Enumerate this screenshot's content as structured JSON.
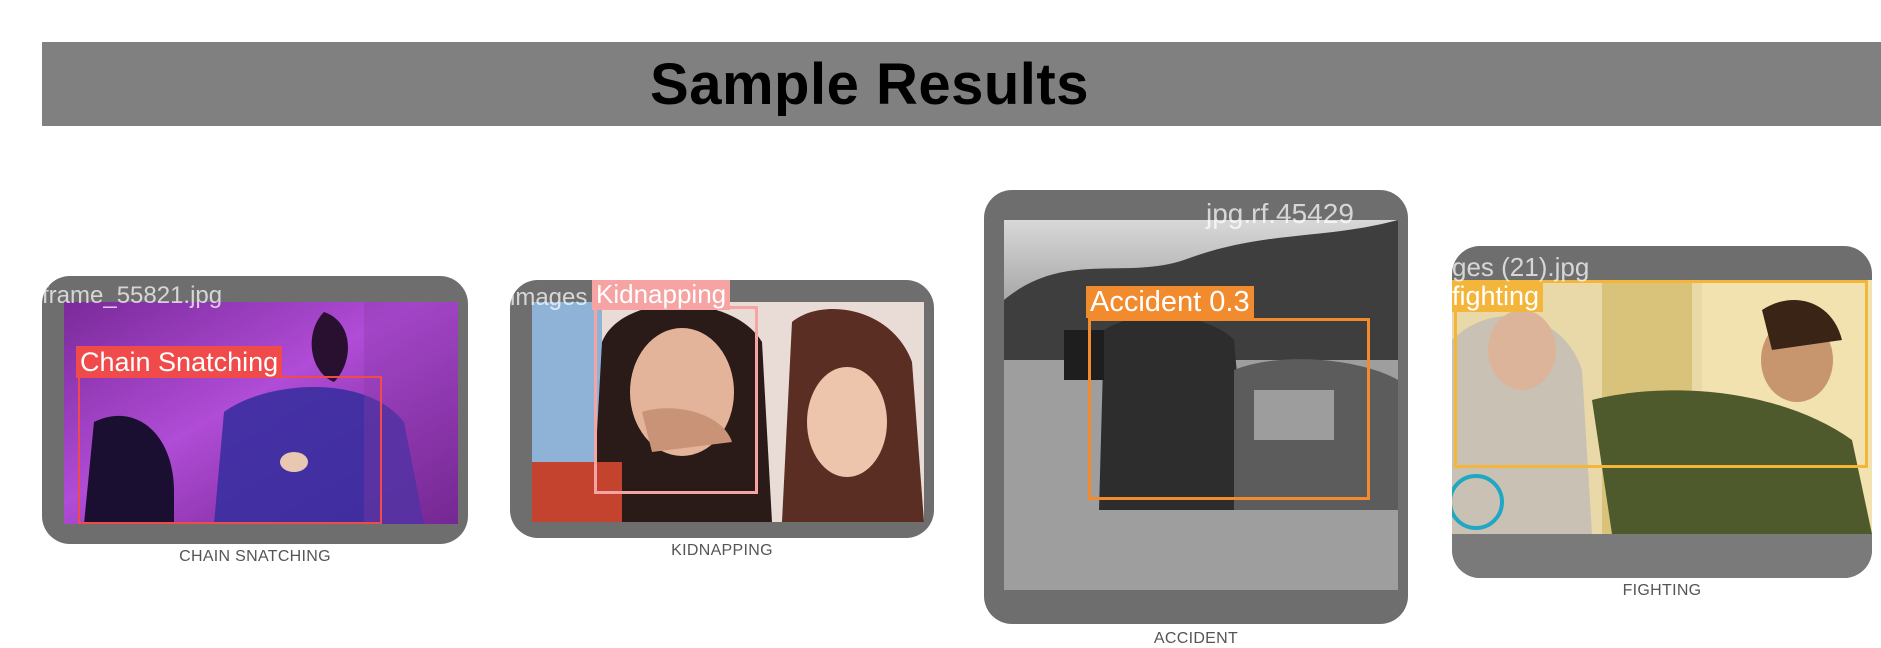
{
  "header": {
    "title": "Sample Results"
  },
  "cards": [
    {
      "filename": "frame_55821.jpg",
      "detection_label": "Chain Snatching",
      "caption": "CHAIN SNATCHING",
      "box_color": "#f04a4a"
    },
    {
      "filename": "images",
      "detection_label": "Kidnapping",
      "caption": "KIDNAPPING",
      "box_color": "#f5a3a3"
    },
    {
      "filename": "jpg.rf.45429",
      "detection_label": "Accident 0.3",
      "caption": "ACCIDENT",
      "box_color": "#f28a2e"
    },
    {
      "filename": "ges (21).jpg",
      "detection_label": "fighting",
      "caption": "FIGHTING",
      "box_color": "#f3b53a"
    }
  ]
}
